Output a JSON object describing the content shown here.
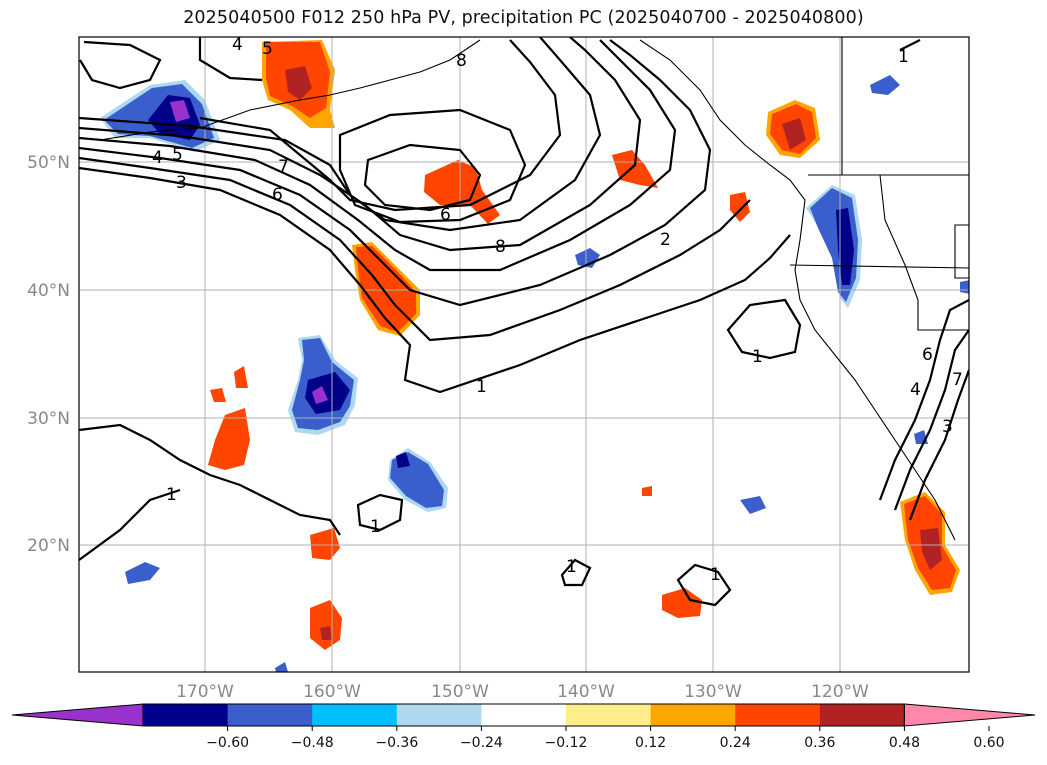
{
  "title": "2025040500 F012 250 hPa PV, precipitation PC (2025040700 - 2025040800)",
  "map": {
    "lat_ticks": [
      "50°N",
      "40°N",
      "30°N",
      "20°N"
    ],
    "lon_ticks": [
      "170°W",
      "160°W",
      "150°W",
      "140°W",
      "130°W",
      "120°W"
    ],
    "lat_values": [
      50,
      40,
      30,
      20
    ],
    "lon_values": [
      -170,
      -160,
      -150,
      -140,
      -130,
      -120
    ],
    "grid": true,
    "contour_labels": [
      "4",
      "5",
      "7",
      "6",
      "3",
      "4",
      "5",
      "6",
      "8",
      "8",
      "2",
      "1",
      "1",
      "1",
      "1",
      "1",
      "1",
      "6",
      "7",
      "4",
      "3",
      "1"
    ]
  },
  "colorbar": {
    "ticks": [
      "−0.60",
      "−0.48",
      "−0.36",
      "−0.24",
      "−0.12",
      "0.12",
      "0.24",
      "0.36",
      "0.48",
      "0.60"
    ],
    "colors": [
      "#9932cc",
      "#00008b",
      "#3a5fcd",
      "#00bfff",
      "#add8f0",
      "#ffffff",
      "#ffec8b",
      "#ffa500",
      "#ff4500",
      "#b22222",
      "#ff88aa"
    ]
  },
  "colors": {
    "grid": "#b0b0b0",
    "tick_label": "#888888"
  }
}
